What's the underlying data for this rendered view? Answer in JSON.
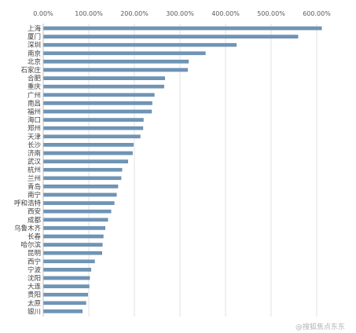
{
  "watermark": "@搜狐焦点东东",
  "chart_data": {
    "type": "bar",
    "orientation": "horizontal",
    "x_ticks": [
      "0.00%",
      "100.00%",
      "200.00%",
      "300.00%",
      "400.00%",
      "500.00%",
      "600.00%"
    ],
    "xlim": [
      0,
      600
    ],
    "grid": true,
    "categories": [
      "上海",
      "厦门",
      "深圳",
      "南京",
      "北京",
      "石家庄",
      "合肥",
      "重庆",
      "广州",
      "南昌",
      "福州",
      "海口",
      "郑州",
      "天津",
      "长沙",
      "济南",
      "武汉",
      "杭州",
      "兰州",
      "青岛",
      "南宁",
      "呼和浩特",
      "西安",
      "成都",
      "乌鲁木齐",
      "长春",
      "哈尔滨",
      "昆明",
      "西宁",
      "宁波",
      "沈阳",
      "大连",
      "贵阳",
      "太原",
      "银川"
    ],
    "values": [
      610,
      558,
      423,
      355,
      318,
      316,
      266,
      264,
      243,
      238,
      237,
      219,
      218,
      212,
      197,
      195,
      185,
      172,
      170,
      163,
      160,
      155,
      148,
      141,
      135,
      131,
      129,
      128,
      112,
      104,
      101,
      100,
      97,
      93,
      85
    ],
    "bar_color": "#6f95b6"
  }
}
